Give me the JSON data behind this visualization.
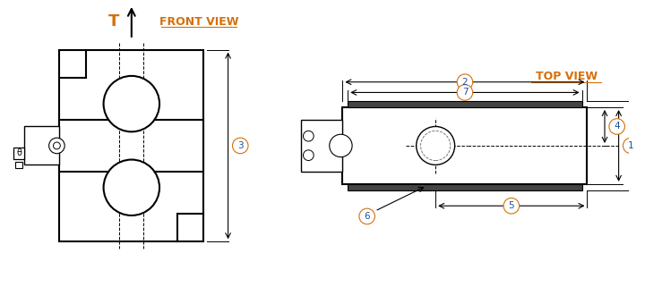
{
  "bg_color": "#ffffff",
  "line_color": "#000000",
  "label_color_orange": "#d4700a",
  "label_color_blue": "#1f4e9c",
  "front_view_title": "FRONT VIEW",
  "top_view_title": "TOP VIEW",
  "arrow_label": "T"
}
